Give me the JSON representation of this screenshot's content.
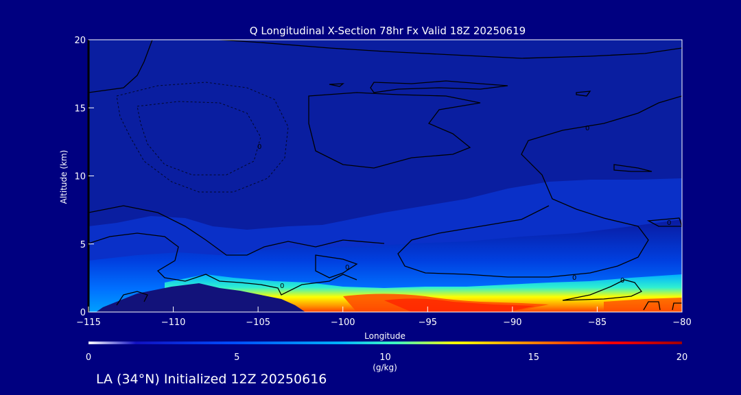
{
  "chart_data": {
    "type": "heatmap",
    "title": "Q Longitudinal X-Section 78hr  Fx Valid 18Z 20250619",
    "xlabel": "Longitude",
    "ylabel": "Altitude (km)",
    "xlim": [
      -115,
      -80
    ],
    "ylim": [
      0,
      20
    ],
    "x_ticks": [
      "-115",
      "-110",
      "-105",
      "-100",
      "-95",
      "-90",
      "-85",
      "-80"
    ],
    "y_ticks": [
      "0",
      "5",
      "10",
      "15",
      "20"
    ],
    "colorbar": {
      "label": "(g/kg)",
      "range": [
        0,
        20
      ],
      "ticks": [
        "0",
        "5",
        "10",
        "15",
        "20"
      ],
      "colors": [
        "#ffffff",
        "#1010c0",
        "#0050ff",
        "#00b0ff",
        "#40ffc0",
        "#ffff00",
        "#ff8000",
        "#ff0000",
        "#a00000"
      ]
    },
    "contour_labels": [
      "0",
      "0",
      "0",
      "0",
      "0",
      "0",
      "0"
    ],
    "grid": false,
    "notes_visible": "mixing ratio highest (~15-17 g/kg) near surface between -98 and -88 longitude"
  },
  "footer": {
    "text": "LA (34°N) Initialized 12Z 20250616"
  },
  "colors": {
    "background": "#000080",
    "text": "#ffffff",
    "contour": "#000000"
  }
}
